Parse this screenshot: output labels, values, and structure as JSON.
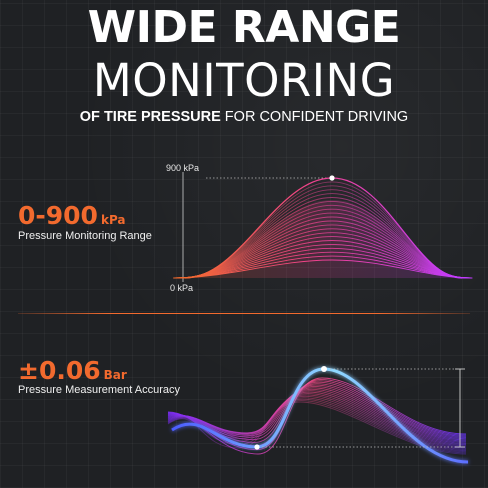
{
  "header": {
    "title_line1": "WIDE RANGE",
    "title_line2": "MONITORING",
    "subtitle_strong": "OF TIRE PRESSURE",
    "subtitle_rest": " FOR CONFIDENT DRIVING"
  },
  "range_stat": {
    "value": "0-900",
    "unit": "kPa",
    "label": "Pressure Monitoring Range",
    "axis_top": "900 kPa",
    "axis_bottom": "0 kPa"
  },
  "accuracy_stat": {
    "value": "±0.06",
    "unit": "Bar",
    "label": "Pressure Measurement Accuracy"
  },
  "colors": {
    "accent_orange": "#f26a2e",
    "accent_magenta": "#e040fb",
    "accent_purple": "#a24bff",
    "accent_blue": "#6cc6ff",
    "background": "#1f2124"
  },
  "graphics": {
    "range_chart": "stacked bell curves rising from 0 kPa to 900 kPa",
    "accuracy_chart": "wave band with a highlighted peak and trough"
  }
}
